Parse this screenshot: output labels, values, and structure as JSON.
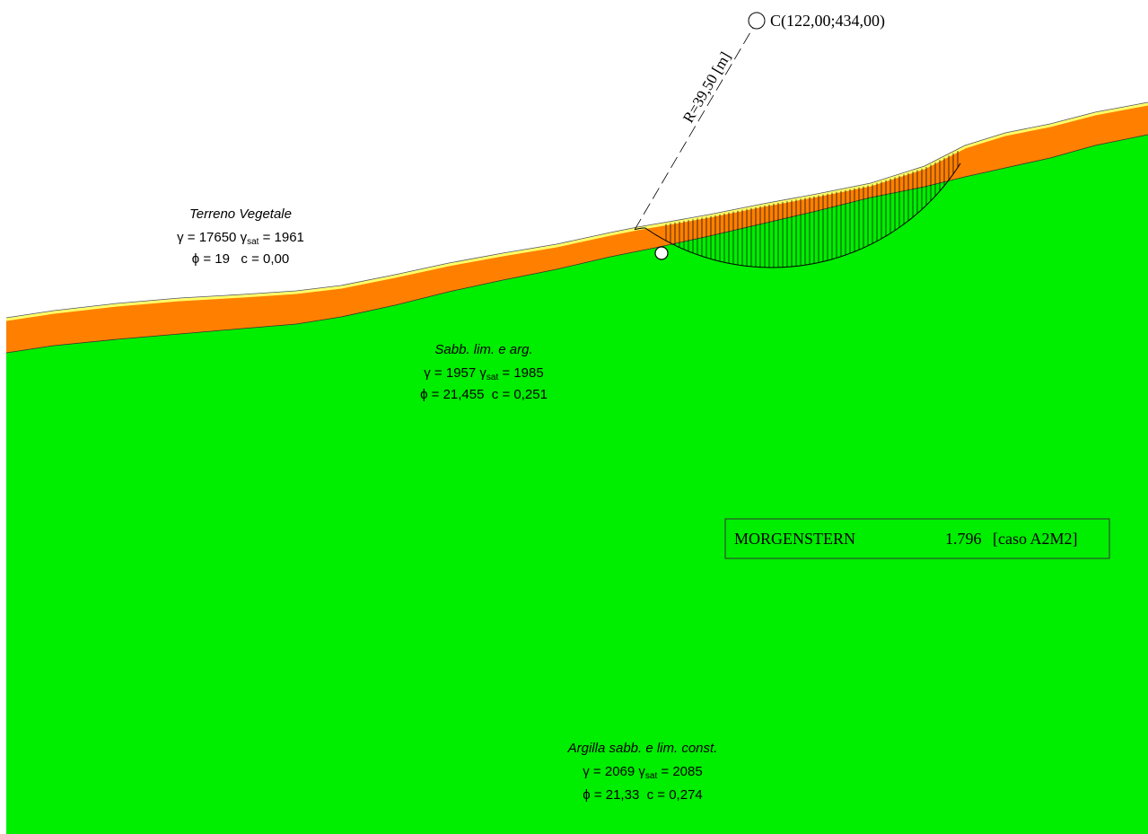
{
  "center": {
    "label": "C(122,00;434,00)"
  },
  "radius": {
    "label": "R=39,50 [m]"
  },
  "result": {
    "method": "MORGENSTERN",
    "value": "1.796",
    "case": "[caso A2M2]"
  },
  "layers": [
    {
      "name": "Terreno Vegetale",
      "gamma_label": "γ = 17650",
      "gammasat_prefix": "γ",
      "gammasat_sub": "sat",
      "gammasat_value": " = 1961",
      "phi_c": "ϕ = 19   c = 0,00"
    },
    {
      "name": "Sabb. lim. e arg.",
      "gamma_label": "γ = 1957",
      "gammasat_prefix": "γ",
      "gammasat_sub": "sat",
      "gammasat_value": " = 1985",
      "phi_c": "ϕ = 21,455  c = 0,251"
    },
    {
      "name": "Argilla sabb. e lim. const.",
      "gamma_label": "γ = 2069",
      "gammasat_prefix": "γ",
      "gammasat_sub": "sat",
      "gammasat_value": " = 2085",
      "phi_c": "ϕ = 21,33  c = 0,274"
    }
  ],
  "colors": {
    "ground": "#00ee00",
    "topsoil": "#ff8000",
    "surface_line": "#ffff66",
    "slip_hatch": "#000000"
  }
}
